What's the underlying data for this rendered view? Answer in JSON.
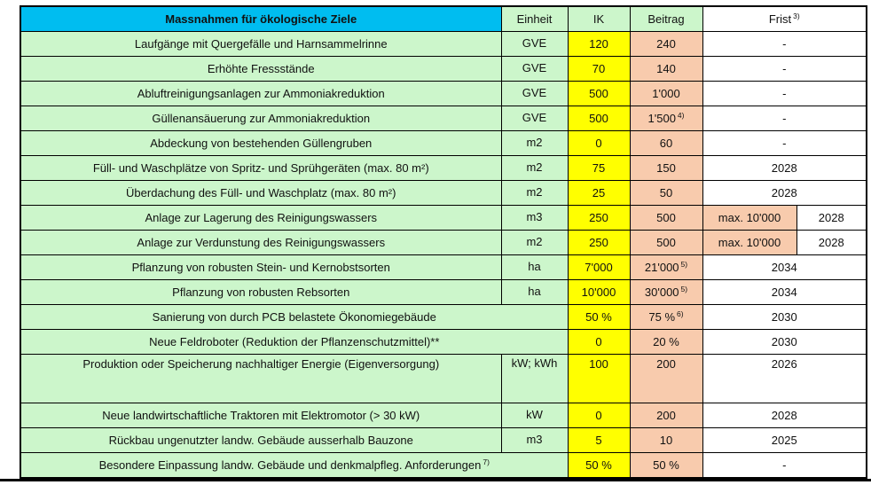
{
  "table": {
    "header": {
      "measure": "Massnahmen für ökologische Ziele",
      "einheit": "Einheit",
      "ik": "IK",
      "beitrag": "Beitrag",
      "frist": "Frist",
      "frist_sup": "3)"
    },
    "rows": [
      {
        "measure": "Laufgänge mit Quergefälle und Harnsammelrinne",
        "einheit": "GVE",
        "ik": "120",
        "beitrag": "240",
        "frist": "-"
      },
      {
        "measure": "Erhöhte Fressstände",
        "einheit": "GVE",
        "ik": "70",
        "beitrag": "140",
        "frist": "-"
      },
      {
        "measure": "Abluftreinigungsanlagen zur Ammoniakreduktion",
        "einheit": "GVE",
        "ik": "500",
        "beitrag": "1'000",
        "frist": "-"
      },
      {
        "measure": "Güllenansäuerung zur Ammoniakreduktion",
        "einheit": "GVE",
        "ik": "500",
        "beitrag": "1'500",
        "beitrag_sup": "4)",
        "frist": "-"
      },
      {
        "measure": "Abdeckung von bestehenden Güllengruben",
        "einheit": "m2",
        "ik": "0",
        "beitrag": "60",
        "frist": "-"
      },
      {
        "measure": "Füll- und Waschplätze von Spritz- und Sprühgeräten (max. 80 m²)",
        "einheit": "m2",
        "ik": "75",
        "beitrag": "150",
        "frist": "2028"
      },
      {
        "measure": "Überdachung des Füll- und Waschplatz (max. 80 m²)",
        "einheit": "m2",
        "ik": "25",
        "beitrag": "50",
        "frist": "2028"
      },
      {
        "measure": "Anlage zur Lagerung des Reinigungswassers",
        "einheit": "m3",
        "ik": "250",
        "beitrag": "500",
        "frist_left": "max. 10'000",
        "frist_right": "2028"
      },
      {
        "measure": "Anlage zur Verdunstung des Reinigungswassers",
        "einheit": "m2",
        "ik": "250",
        "beitrag": "500",
        "frist_left": "max. 10'000",
        "frist_right": "2028"
      },
      {
        "measure": "Pflanzung von robusten Stein- und Kernobstsorten",
        "einheit": "ha",
        "ik": "7'000",
        "beitrag": "21'000",
        "beitrag_sup": "5)",
        "frist": "2034"
      },
      {
        "measure": "Pflanzung von robusten Rebsorten",
        "einheit": "ha",
        "ik": "10'000",
        "beitrag": "30'000",
        "beitrag_sup": "5)",
        "frist": "2034"
      },
      {
        "measure": "Sanierung von durch PCB belastete Ökonomiegebäude",
        "einheit": null,
        "ik": "50 %",
        "beitrag": "75 %",
        "beitrag_sup": "6)",
        "frist": "2030"
      },
      {
        "measure": "Neue Feldroboter (Reduktion der Pflanzenschutzmittel)**",
        "einheit": null,
        "ik": "0",
        "beitrag": "20 %",
        "frist": "2030"
      },
      {
        "measure": "Produktion oder Speicherung nachhaltiger Energie (Eigenversorgung)",
        "einheit": "kW;\nkWh",
        "ik": "100",
        "beitrag": "200",
        "frist": "2026",
        "tall": true
      },
      {
        "measure": "Neue landwirtschaftliche Traktoren mit Elektromotor (> 30 kW)",
        "einheit": "kW",
        "ik": "0",
        "beitrag": "200",
        "frist": "2028"
      },
      {
        "measure": "Rückbau ungenutzter landw. Gebäude ausserhalb Bauzone",
        "einheit": "m3",
        "ik": "5",
        "beitrag": "10",
        "frist": "2025"
      },
      {
        "measure": "Besondere Einpassung landw. Gebäude und denkmalpfleg. Anforderungen",
        "measure_sup": "7)",
        "einheit": null,
        "ik": "50 %",
        "beitrag": "50 %",
        "frist": "-"
      }
    ]
  },
  "colors": {
    "header_cyan": "#00BDF0",
    "row_green": "#CCF6CB",
    "ik_yellow": "#FFFF00",
    "beitrag_orange": "#F8CBAD",
    "border": "#000000"
  }
}
